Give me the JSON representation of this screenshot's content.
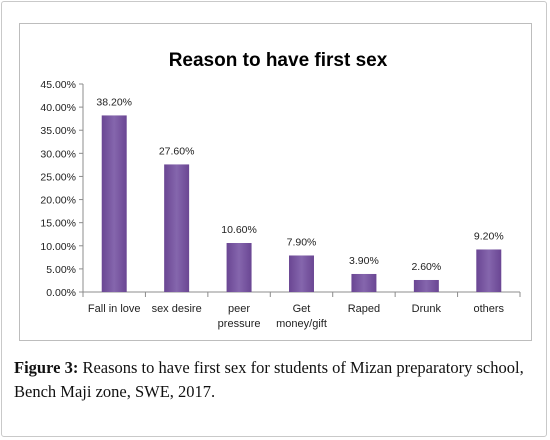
{
  "chart_data": {
    "type": "bar",
    "title": "Reason to have first sex",
    "categories": [
      "Fall in love",
      "sex desire",
      "peer pressure",
      "Get money/gift",
      "Raped",
      "Drunk",
      "others"
    ],
    "category_lines": [
      [
        "Fall in love"
      ],
      [
        "sex desire"
      ],
      [
        "peer",
        "pressure"
      ],
      [
        "Get",
        "money/gift"
      ],
      [
        "Raped"
      ],
      [
        "Drunk"
      ],
      [
        "others"
      ]
    ],
    "values": [
      38.2,
      27.6,
      10.6,
      7.9,
      3.9,
      2.6,
      9.2
    ],
    "value_labels": [
      "38.20%",
      "27.60%",
      "10.60%",
      "7.90%",
      "3.90%",
      "2.60%",
      "9.20%"
    ],
    "ylim": [
      0,
      45
    ],
    "yticks": [
      0,
      5,
      10,
      15,
      20,
      25,
      30,
      35,
      40,
      45
    ],
    "ytick_labels": [
      "0.00%",
      "5.00%",
      "10.00%",
      "15.00%",
      "20.00%",
      "25.00%",
      "30.00%",
      "35.00%",
      "40.00%",
      "45.00%"
    ],
    "grid": false,
    "legend": "none",
    "bar_color": "#6a4693",
    "bar_color_light": "#8566ad"
  },
  "caption": {
    "label": "Figure 3:",
    "text": " Reasons to have first sex for students of Mizan preparatory school, Bench Maji zone, SWE, 2017."
  }
}
